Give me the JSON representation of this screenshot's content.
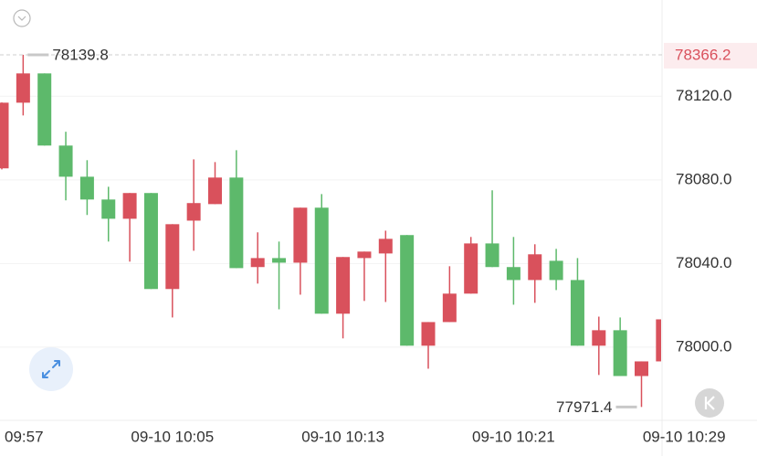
{
  "chart_data": {
    "type": "candlestick",
    "categories": [
      "09:57",
      null,
      null,
      null,
      null,
      null,
      null,
      null,
      "09-10 10:05",
      null,
      null,
      null,
      null,
      null,
      null,
      null,
      "09-10 10:13",
      null,
      null,
      null,
      null,
      null,
      null,
      null,
      "09-10 10:21",
      null,
      null,
      null,
      null,
      null,
      null,
      null,
      "09-10 10:29"
    ],
    "open": [
      78085.5,
      78116.9,
      78130.9,
      78096.4,
      78081.5,
      78070.6,
      78061.4,
      78073.7,
      78027.8,
      78060.5,
      78068.4,
      78081.1,
      78038.3,
      78042.6,
      78040.4,
      78066.7,
      78016.0,
      78042.6,
      78044.8,
      78053.6,
      78000.7,
      78012.0,
      78025.6,
      78049.6,
      78038.3,
      78032.1,
      78041.3,
      78032.1,
      78000.7,
      78008.1,
      77986.2,
      77993.2,
      null
    ],
    "high": [
      78117.0,
      78139.8,
      78130.9,
      78103.0,
      78089.4,
      78076.7,
      78073.7,
      78073.7,
      78058.8,
      78089.8,
      78088.5,
      78094.2,
      78054.9,
      78050.5,
      78066.7,
      78073.2,
      78043.1,
      78045.7,
      78055.7,
      78053.6,
      78012.0,
      78038.7,
      78052.7,
      78075.0,
      78052.7,
      78049.2,
      78047.0,
      78042.6,
      78014.6,
      78014.2,
      77993.2,
      78013.3,
      null
    ],
    "low": [
      78085.0,
      78110.8,
      78096.4,
      78070.2,
      78063.2,
      78050.5,
      78040.9,
      78027.8,
      78014.2,
      78046.1,
      78068.4,
      78037.8,
      78030.4,
      78018.1,
      78025.1,
      78016.0,
      78004.2,
      78022.1,
      78021.6,
      78000.7,
      77989.7,
      78012.0,
      78025.6,
      78038.3,
      78020.3,
      78021.2,
      78027.3,
      78000.7,
      77986.7,
      77986.2,
      77971.4,
      77993.2,
      null
    ],
    "close": [
      78116.9,
      78130.9,
      78096.4,
      78081.5,
      78070.6,
      78061.4,
      78073.7,
      78027.8,
      78058.8,
      78068.9,
      78081.1,
      78037.8,
      78042.6,
      78040.4,
      78066.7,
      78016.0,
      78043.1,
      78045.7,
      78051.8,
      78000.7,
      78012.0,
      78025.6,
      78049.6,
      78038.3,
      78032.1,
      78044.4,
      78032.1,
      78000.7,
      78008.1,
      77986.2,
      77993.2,
      78013.3,
      null
    ],
    "up_color": "#d9515c",
    "down_color": "#5db96b",
    "ylim": [
      77965,
      78166
    ],
    "yticks": [
      {
        "value": 78000,
        "label": "78000.0"
      },
      {
        "value": 78040,
        "label": "78040.0"
      },
      {
        "value": 78080,
        "label": "78080.0"
      },
      {
        "value": 78120,
        "label": "78120.0"
      }
    ],
    "grid": true,
    "price_tag": 78366.2
  }
}
